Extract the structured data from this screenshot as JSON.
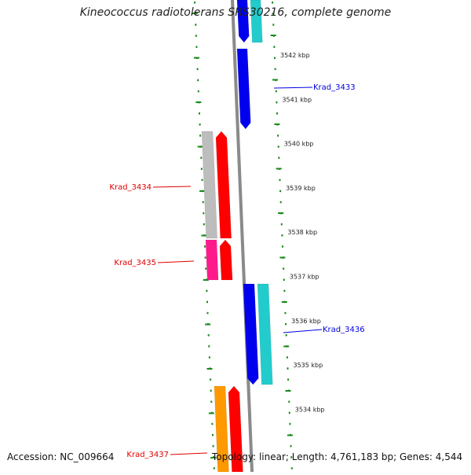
{
  "header": {
    "title": "Kineococcus radiotolerans SRS30216, complete genome"
  },
  "footer": {
    "accession": "Accession: NC_009664",
    "summary": "Topology: linear; Length: 4,761,183 bp; Genes: 4,544"
  },
  "colors": {
    "backbone": "#8a8a8a",
    "ticks": "#1a8a1a",
    "forward_label": "#e00000",
    "reverse_label": "#0000e0",
    "cds_forward": "#ff0000",
    "cds_reverse": "#0000ee",
    "gene_forward": "#bdbdbd",
    "gene_pink": "#ff1a8c",
    "gene_orange": "#ff9900",
    "gene_cyan": "#22cccc"
  },
  "scale_labels": [
    "3542 kbp",
    "3541 kbp",
    "3540 kbp",
    "3539 kbp",
    "3538 kbp",
    "3537 kbp",
    "3536 kbp",
    "3535 kbp",
    "3534 kbp"
  ],
  "genes": [
    {
      "label": "Krad_3433",
      "strand": "reverse"
    },
    {
      "label": "Krad_3434",
      "strand": "forward"
    },
    {
      "label": "Krad_3435",
      "strand": "forward"
    },
    {
      "label": "Krad_3436",
      "strand": "reverse"
    },
    {
      "label": "Krad_3437",
      "strand": "forward"
    }
  ]
}
